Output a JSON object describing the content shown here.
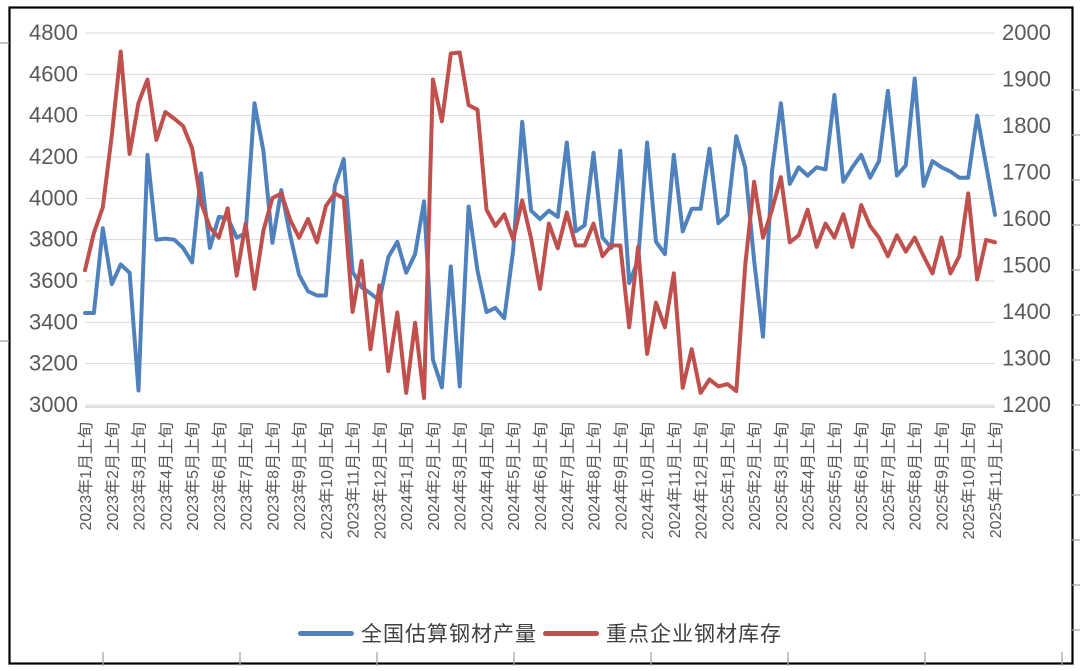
{
  "chart_data": {
    "type": "line",
    "title": "",
    "frequency_note": "one point per 旬 (10-day period), axis labeled at each month 上旬",
    "points_per_label": 3,
    "x_tick_labels": [
      "2023年1月上旬",
      "2023年2月上旬",
      "2023年3月上旬",
      "2023年4月上旬",
      "2023年5月上旬",
      "2023年6月上旬",
      "2023年7月上旬",
      "2023年8月上旬",
      "2023年9月上旬",
      "2023年10月上旬",
      "2023年11月上旬",
      "2023年12月上旬",
      "2024年1月上旬",
      "2024年2月上旬",
      "2024年3月上旬",
      "2024年4月上旬",
      "2024年5月上旬",
      "2024年6月上旬",
      "2024年7月上旬",
      "2024年8月上旬",
      "2024年9月上旬",
      "2024年10月上旬",
      "2024年11月上旬",
      "2024年12月上旬",
      "2025年1月上旬",
      "2025年2月上旬",
      "2025年3月上旬",
      "2025年4月上旬",
      "2025年5月上旬",
      "2025年6月上旬",
      "2025年7月上旬",
      "2025年8月上旬",
      "2025年9月上旬",
      "2025年10月上旬",
      "2025年11月上旬"
    ],
    "left_axis": {
      "min": 3000,
      "max": 4800,
      "step": 200,
      "ticks": [
        "4800",
        "4600",
        "4400",
        "4200",
        "4000",
        "3800",
        "3600",
        "3400",
        "3200",
        "3000"
      ]
    },
    "right_axis": {
      "min": 1200,
      "max": 2000,
      "step": 100,
      "ticks": [
        "2000",
        "1900",
        "1800",
        "1700",
        "1600",
        "1500",
        "1400",
        "1300",
        "1200"
      ]
    },
    "grid": "horizontal",
    "legend_position": "bottom",
    "series": [
      {
        "name": "全国估算钢材产量",
        "axis": "left",
        "color": "#4F81BD",
        "values": [
          3445,
          3445,
          3855,
          3585,
          3680,
          3640,
          3070,
          4210,
          3800,
          3805,
          3800,
          3760,
          3690,
          4120,
          3760,
          3910,
          3905,
          3810,
          3830,
          4460,
          4230,
          3785,
          4040,
          3820,
          3630,
          3550,
          3530,
          3530,
          4060,
          4190,
          3645,
          3570,
          3540,
          3505,
          3715,
          3790,
          3640,
          3730,
          3985,
          3220,
          3085,
          3670,
          3090,
          3960,
          3650,
          3450,
          3470,
          3420,
          3750,
          4370,
          3940,
          3900,
          3940,
          3910,
          4270,
          3840,
          3870,
          4220,
          3810,
          3760,
          4230,
          3590,
          3700,
          4270,
          3790,
          3730,
          4210,
          3840,
          3950,
          3950,
          4240,
          3880,
          3920,
          4300,
          4150,
          3700,
          3330,
          4130,
          4460,
          4070,
          4150,
          4110,
          4150,
          4140,
          4500,
          4080,
          4150,
          4210,
          4100,
          4180,
          4520,
          4110,
          4160,
          4580,
          4060,
          4180,
          4150,
          4130,
          4100,
          4100,
          4400,
          4160,
          3920
        ]
      },
      {
        "name": "重点企业钢材库存",
        "axis": "right",
        "color": "#C0504D",
        "values": [
          1490,
          1570,
          1625,
          1780,
          1960,
          1740,
          1850,
          1900,
          1770,
          1830,
          1816,
          1800,
          1752,
          1636,
          1582,
          1560,
          1623,
          1478,
          1590,
          1450,
          1575,
          1645,
          1655,
          1598,
          1560,
          1600,
          1550,
          1628,
          1655,
          1645,
          1400,
          1510,
          1320,
          1457,
          1273,
          1399,
          1226,
          1377,
          1215,
          1900,
          1810,
          1956,
          1958,
          1845,
          1835,
          1620,
          1585,
          1610,
          1556,
          1640,
          1558,
          1450,
          1590,
          1537,
          1614,
          1543,
          1543,
          1590,
          1520,
          1543,
          1543,
          1367,
          1540,
          1310,
          1420,
          1367,
          1483,
          1237,
          1320,
          1226,
          1255,
          1240,
          1245,
          1230,
          1500,
          1680,
          1560,
          1620,
          1690,
          1550,
          1565,
          1620,
          1540,
          1590,
          1560,
          1610,
          1540,
          1630,
          1585,
          1560,
          1520,
          1565,
          1530,
          1560,
          1520,
          1483,
          1560,
          1483,
          1520,
          1655,
          1470,
          1555,
          1550
        ]
      }
    ]
  },
  "colors": {
    "grid": "#D9D9D9",
    "axis_line": "#BFBFBF",
    "tick_label": "#595959",
    "frame": "#000000",
    "outer_tick": "#A6A6A6",
    "background": "#FFFFFF"
  },
  "legend": {
    "items": [
      {
        "label": "全国估算钢材产量",
        "color": "#4F81BD"
      },
      {
        "label": "重点企业钢材库存",
        "color": "#C0504D"
      }
    ]
  }
}
